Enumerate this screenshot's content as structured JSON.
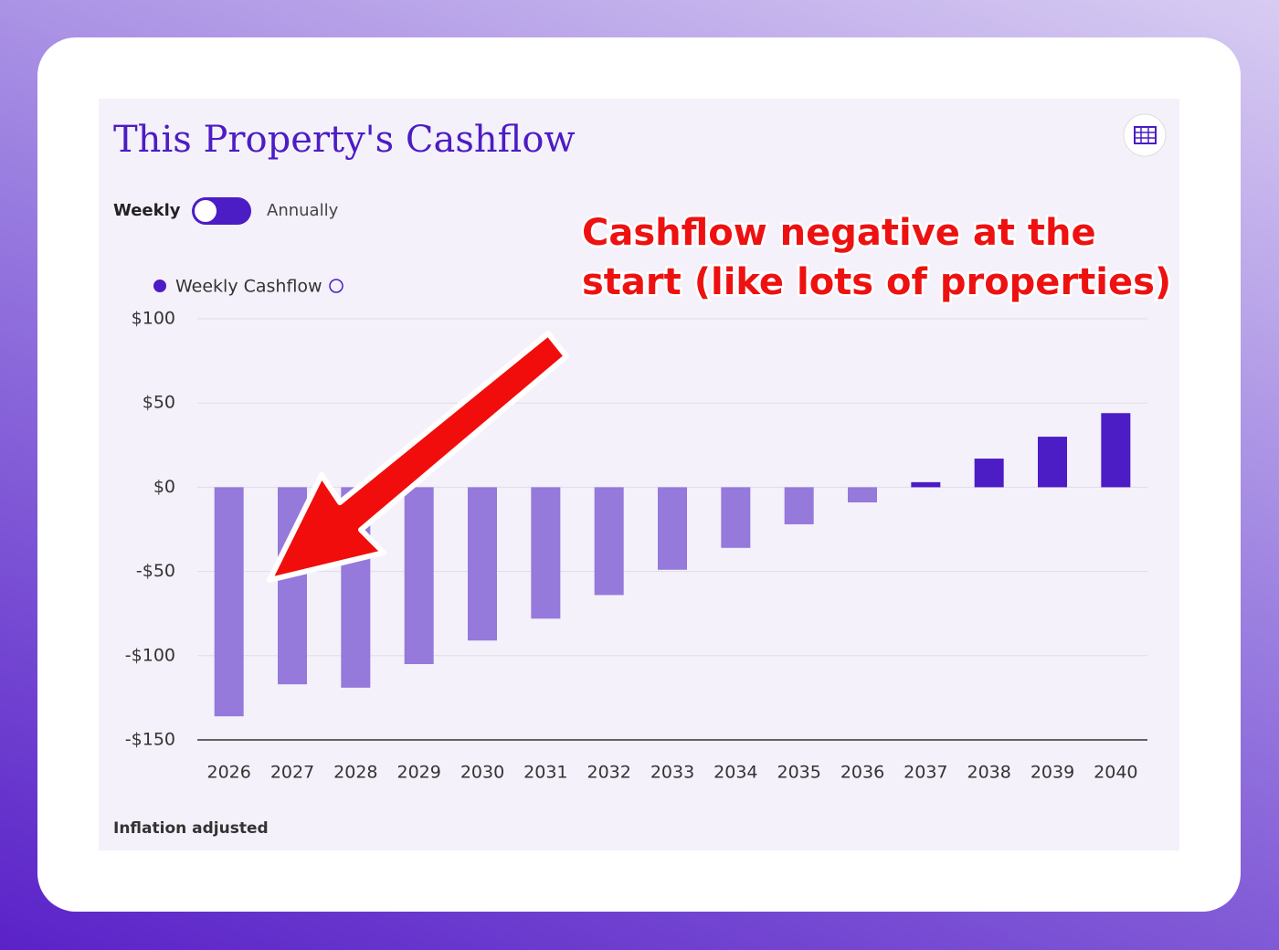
{
  "chart_data": {
    "type": "bar",
    "title": "This Property's Cashflow",
    "toggle": {
      "left": "Weekly",
      "right": "Annually"
    },
    "legend": "Weekly Cashflow",
    "annotation": [
      "Cashflow negative at the",
      "start (like lots of properties)"
    ],
    "footnote": "Inflation adjusted",
    "categories": [
      "2026",
      "2027",
      "2028",
      "2029",
      "2030",
      "2031",
      "2032",
      "2033",
      "2034",
      "2035",
      "2036",
      "2037",
      "2038",
      "2039",
      "2040"
    ],
    "values": [
      -136,
      -117,
      -119,
      -105,
      -91,
      -78,
      -64,
      -49,
      -36,
      -22,
      -9,
      3,
      17,
      30,
      44
    ],
    "color": "#4c1cc4",
    "negative_color": "#9579db",
    "ylim": [
      -150,
      100
    ],
    "yticks": [
      {
        "value": -150,
        "label": "-$150"
      },
      {
        "value": -100,
        "label": "-$100"
      },
      {
        "value": -50,
        "label": "-$50"
      },
      {
        "value": 0,
        "label": "$0"
      },
      {
        "value": 50,
        "label": "$50"
      },
      {
        "value": 100,
        "label": "$100"
      }
    ],
    "grid": true
  }
}
